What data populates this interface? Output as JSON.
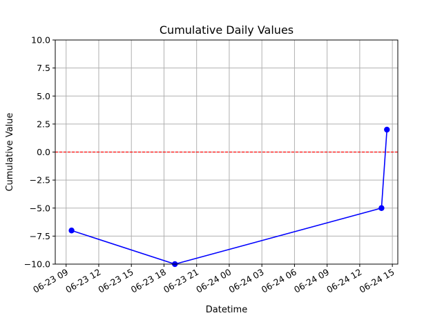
{
  "chart_data": {
    "type": "line",
    "title": "Cumulative Daily Values",
    "xlabel": "Datetime",
    "ylabel": "Cumulative Value",
    "x_axis_type": "datetime",
    "xlim": [
      "2023-06-23T08:00",
      "2023-06-24T15:30"
    ],
    "ylim": [
      -10,
      10
    ],
    "grid": true,
    "x_ticks": [
      {
        "value": "2023-06-23T09:00",
        "label": "06-23 09"
      },
      {
        "value": "2023-06-23T12:00",
        "label": "06-23 12"
      },
      {
        "value": "2023-06-23T15:00",
        "label": "06-23 15"
      },
      {
        "value": "2023-06-23T18:00",
        "label": "06-23 18"
      },
      {
        "value": "2023-06-23T21:00",
        "label": "06-23 21"
      },
      {
        "value": "2023-06-24T00:00",
        "label": "06-24 00"
      },
      {
        "value": "2023-06-24T03:00",
        "label": "06-24 03"
      },
      {
        "value": "2023-06-24T06:00",
        "label": "06-24 06"
      },
      {
        "value": "2023-06-24T09:00",
        "label": "06-24 09"
      },
      {
        "value": "2023-06-24T12:00",
        "label": "06-24 12"
      },
      {
        "value": "2023-06-24T15:00",
        "label": "06-24 15"
      }
    ],
    "y_ticks": [
      {
        "value": 10,
        "label": "10.0"
      },
      {
        "value": 7.5,
        "label": "7.5"
      },
      {
        "value": 5,
        "label": "5.0"
      },
      {
        "value": 2.5,
        "label": "2.5"
      },
      {
        "value": 0,
        "label": "0.0"
      },
      {
        "value": -2.5,
        "label": "−2.5"
      },
      {
        "value": -5,
        "label": "−5.0"
      },
      {
        "value": -7.5,
        "label": "−7.5"
      },
      {
        "value": -10,
        "label": "−10.0"
      }
    ],
    "series": [
      {
        "color": "#0000ff",
        "marker": "circle",
        "points": [
          {
            "x": "2023-06-23T09:30",
            "y": -7
          },
          {
            "x": "2023-06-23T19:00",
            "y": -10
          },
          {
            "x": "2023-06-24T14:00",
            "y": -5
          },
          {
            "x": "2023-06-24T14:30",
            "y": 2
          }
        ]
      }
    ],
    "reference_lines": [
      {
        "orientation": "horizontal",
        "y": 0,
        "color": "#ff0000",
        "style": "dashed"
      }
    ]
  }
}
